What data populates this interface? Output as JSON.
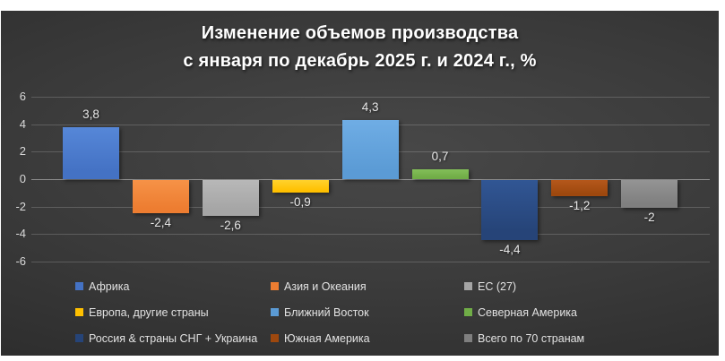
{
  "title": {
    "line1": "Изменение объемов производства",
    "line2": "с января по декабрь 2025 г. и 2024 г., %"
  },
  "chart_data": {
    "type": "bar",
    "title": "Изменение объемов производства с января по декабрь 2025 г. и 2024 г., %",
    "xlabel": "",
    "ylabel": "",
    "ylim": [
      -6,
      6
    ],
    "yticks": [
      6,
      4,
      2,
      0,
      -2,
      -4,
      -6
    ],
    "ytick_labels": [
      "6",
      "4",
      "2",
      "0",
      "-2",
      "-4",
      "-6"
    ],
    "grid": true,
    "legend_position": "bottom",
    "background": "#3a3a3a",
    "series": [
      {
        "name": "Африка",
        "value": 3.8,
        "label": "3,8",
        "color": "#4472C4",
        "color_light": "#5687d8"
      },
      {
        "name": "Азия и Океания",
        "value": -2.4,
        "label": "-2,4",
        "color": "#ED7D31",
        "color_light": "#f69247"
      },
      {
        "name": "ЕС (27)",
        "value": -2.6,
        "label": "-2,6",
        "color": "#A5A5A5",
        "color_light": "#b8b8b8"
      },
      {
        "name": "Европа, другие страны",
        "value": -0.9,
        "label": "-0,9",
        "color": "#FFC000",
        "color_light": "#ffd22e"
      },
      {
        "name": "Ближний Восток",
        "value": 4.3,
        "label": "4,3",
        "color": "#5B9BD5",
        "color_light": "#6fade5"
      },
      {
        "name": "Северная Америка",
        "value": 0.7,
        "label": "0,7",
        "color": "#70AD47",
        "color_light": "#83bf59"
      },
      {
        "name": "Россия & страны СНГ + Украина",
        "value": -4.4,
        "label": "-4,4",
        "color": "#264478",
        "color_light": "#315694"
      },
      {
        "name": "Южная Америка",
        "value": -1.2,
        "label": "-1,2",
        "color": "#9E480E",
        "color_light": "#b5581b"
      },
      {
        "name": "Всего по 70 странам",
        "value": -2,
        "label": "-2",
        "color": "#7F7F7F",
        "color_light": "#949494"
      }
    ]
  }
}
